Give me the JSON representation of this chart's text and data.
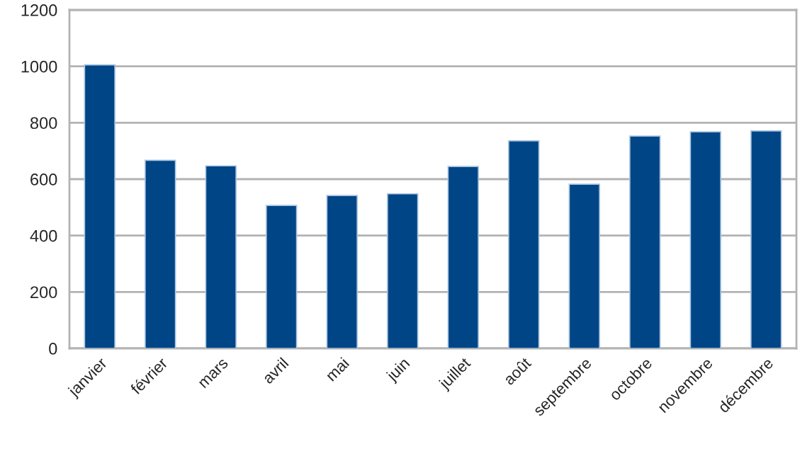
{
  "chart_data": {
    "type": "bar",
    "categories": [
      "janvier",
      "février",
      "mars",
      "avril",
      "mai",
      "juin",
      "juillet",
      "août",
      "septembre",
      "octobre",
      "novembre",
      "décembre"
    ],
    "values": [
      1005,
      667,
      647,
      507,
      542,
      548,
      645,
      736,
      582,
      753,
      768,
      771
    ],
    "color": "#004586",
    "ylim": [
      0,
      1200
    ],
    "yticks": [
      0,
      200,
      400,
      600,
      800,
      1000,
      1200
    ],
    "grid": "y",
    "legend": false
  }
}
